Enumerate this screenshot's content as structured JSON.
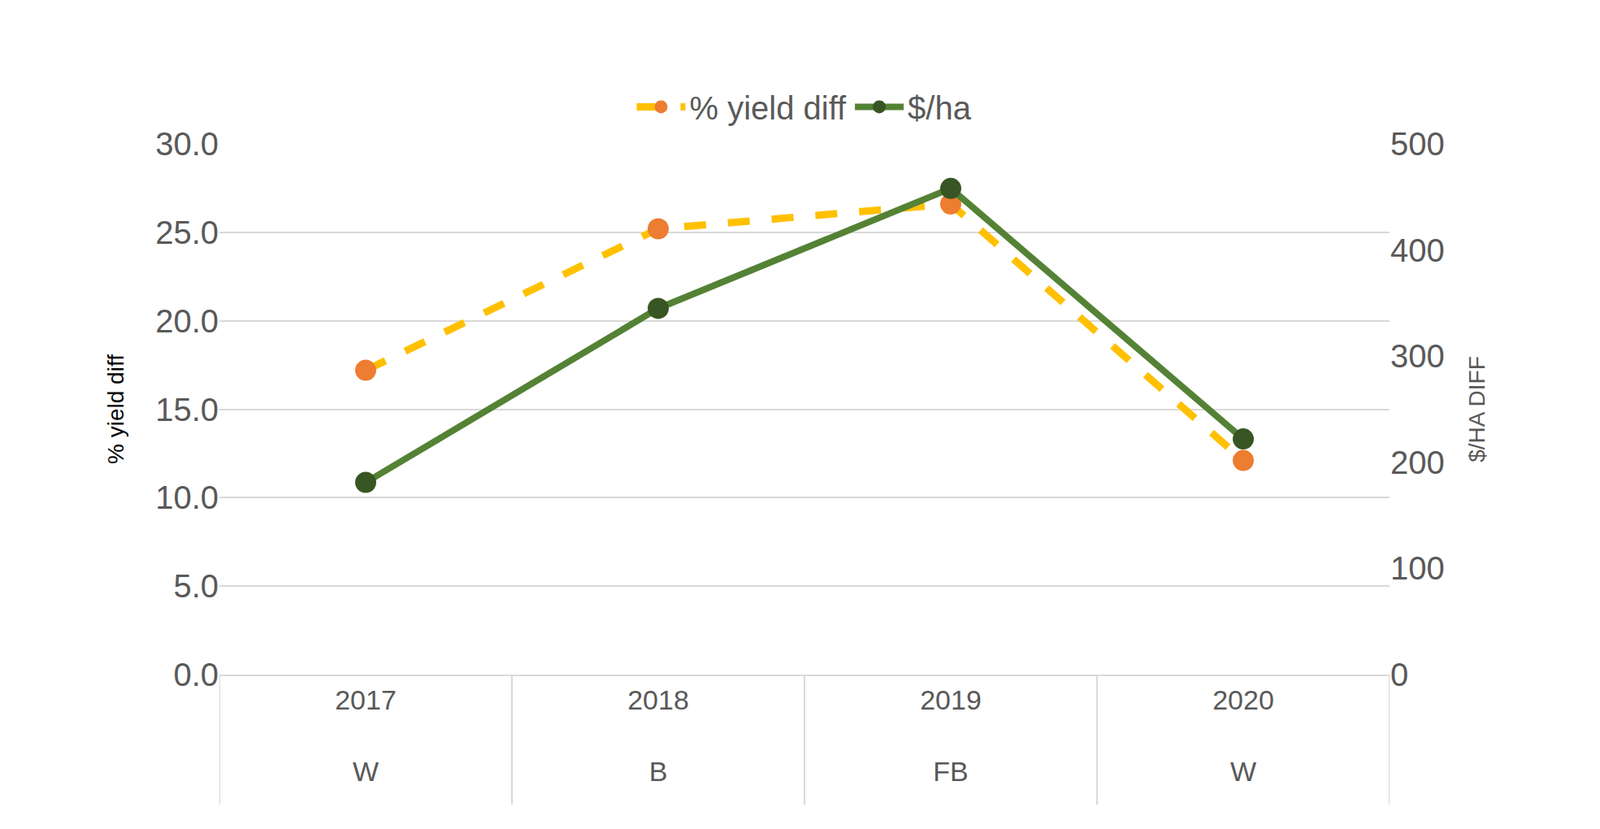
{
  "chart_data": {
    "type": "line",
    "categories": [
      [
        "2017",
        "W"
      ],
      [
        "2018",
        "B"
      ],
      [
        "2019",
        "FB"
      ],
      [
        "2020",
        "W"
      ]
    ],
    "series": [
      {
        "name": "% yield diff",
        "color": "#FFC000",
        "line_style": "dash",
        "marker": "circle",
        "axis": "y",
        "values": [
          17.2,
          25.2,
          26.6,
          12.1
        ]
      },
      {
        "name": "$/ha",
        "color": "#548235",
        "line_style": "solid",
        "marker": "circle",
        "axis": "y2",
        "values": [
          181,
          345,
          458,
          222
        ]
      }
    ],
    "y_label": "% yield diff",
    "y2_label": "$/HA DIFF",
    "ylim": [
      0,
      30
    ],
    "yticks": [
      {
        "value": 0,
        "label": "0.0"
      },
      {
        "value": 5,
        "label": "5.0"
      },
      {
        "value": 10,
        "label": "10.0"
      },
      {
        "value": 15,
        "label": "15.0"
      },
      {
        "value": 20,
        "label": "20.0"
      },
      {
        "value": 25,
        "label": "25.0"
      },
      {
        "value": 30,
        "label": "30.0"
      }
    ],
    "y2lim": [
      0,
      500
    ],
    "y2ticks": [
      0,
      100,
      200,
      300,
      400,
      500
    ],
    "grid": true,
    "legend": "top"
  }
}
